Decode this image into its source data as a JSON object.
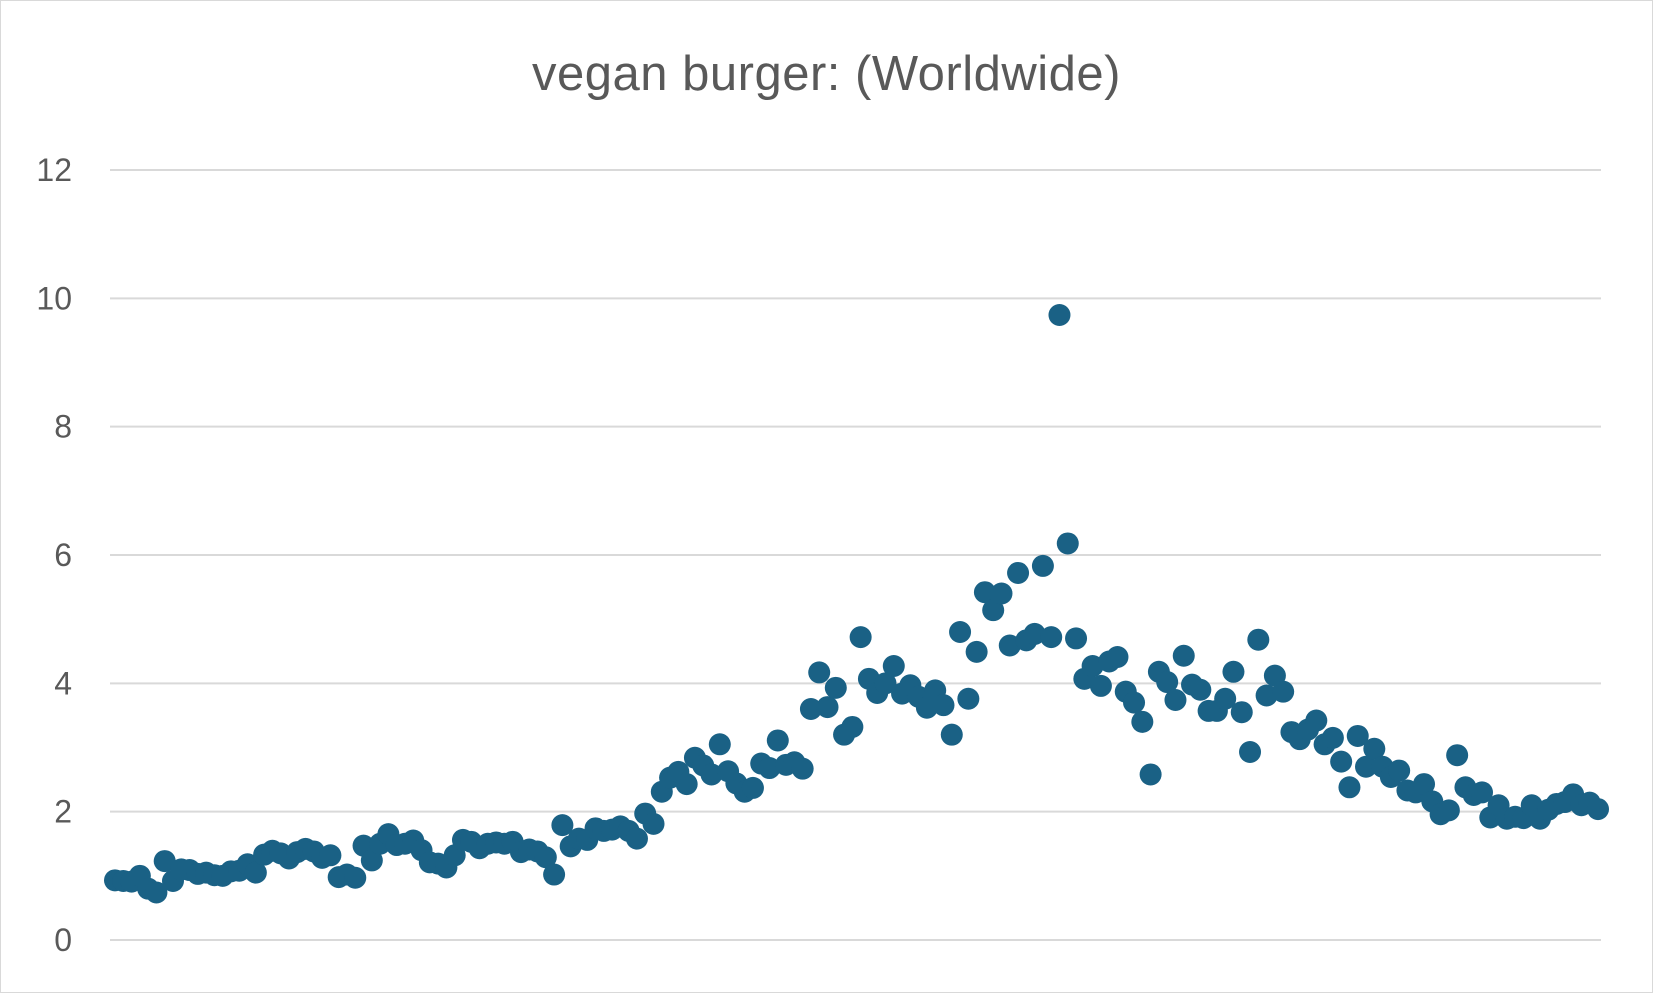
{
  "chart_data": {
    "type": "scatter",
    "title": "vegan burger: (Worldwide)",
    "xlabel": "",
    "ylabel": "",
    "ylim": [
      0,
      12
    ],
    "y_ticks": [
      "0",
      "2",
      "4",
      "6",
      "8",
      "10",
      "12"
    ],
    "grid": "horizontal",
    "legend": "none",
    "marker_color": "#1a6185",
    "series": [
      {
        "values": [
          0.93,
          0.92,
          0.91,
          1.0,
          0.8,
          0.74,
          1.23,
          0.92,
          1.1,
          1.09,
          1.03,
          1.05,
          1.01,
          1.0,
          1.07,
          1.08,
          1.18,
          1.05,
          1.33,
          1.39,
          1.35,
          1.27,
          1.37,
          1.42,
          1.38,
          1.28,
          1.32,
          0.98,
          1.02,
          0.97,
          1.47,
          1.24,
          1.5,
          1.65,
          1.48,
          1.5,
          1.55,
          1.4,
          1.21,
          1.19,
          1.13,
          1.32,
          1.56,
          1.53,
          1.43,
          1.5,
          1.52,
          1.5,
          1.53,
          1.37,
          1.41,
          1.38,
          1.29,
          1.02,
          1.79,
          1.46,
          1.58,
          1.56,
          1.74,
          1.7,
          1.72,
          1.77,
          1.7,
          1.58,
          1.97,
          1.81,
          2.31,
          2.53,
          2.62,
          2.43,
          2.84,
          2.72,
          2.58,
          3.05,
          2.63,
          2.44,
          2.31,
          2.37,
          2.75,
          2.68,
          3.11,
          2.73,
          2.77,
          2.67,
          3.6,
          4.17,
          3.63,
          3.93,
          3.2,
          3.32,
          4.72,
          4.07,
          3.85,
          4.0,
          4.27,
          3.84,
          3.97,
          3.79,
          3.62,
          3.89,
          3.66,
          3.2,
          4.8,
          3.76,
          4.49,
          5.42,
          5.14,
          5.4,
          4.59,
          5.72,
          4.67,
          4.77,
          5.83,
          4.72,
          9.74,
          6.18,
          4.7,
          4.07,
          4.27,
          3.96,
          4.34,
          4.41,
          3.87,
          3.7,
          3.4,
          2.58,
          4.18,
          4.02,
          3.74,
          4.43,
          3.98,
          3.9,
          3.57,
          3.57,
          3.76,
          4.18,
          3.55,
          2.93,
          4.68,
          3.81,
          4.12,
          3.87,
          3.24,
          3.13,
          3.28,
          3.42,
          3.05,
          3.15,
          2.78,
          2.38,
          3.18,
          2.7,
          2.98,
          2.7,
          2.54,
          2.64,
          2.33,
          2.3,
          2.43,
          2.16,
          1.96,
          2.02,
          2.88,
          2.38,
          2.26,
          2.3,
          1.91,
          2.1,
          1.89,
          1.92,
          1.9,
          2.1,
          1.89,
          2.03,
          2.12,
          2.15,
          2.27,
          2.1,
          2.14,
          2.04
        ]
      }
    ]
  }
}
